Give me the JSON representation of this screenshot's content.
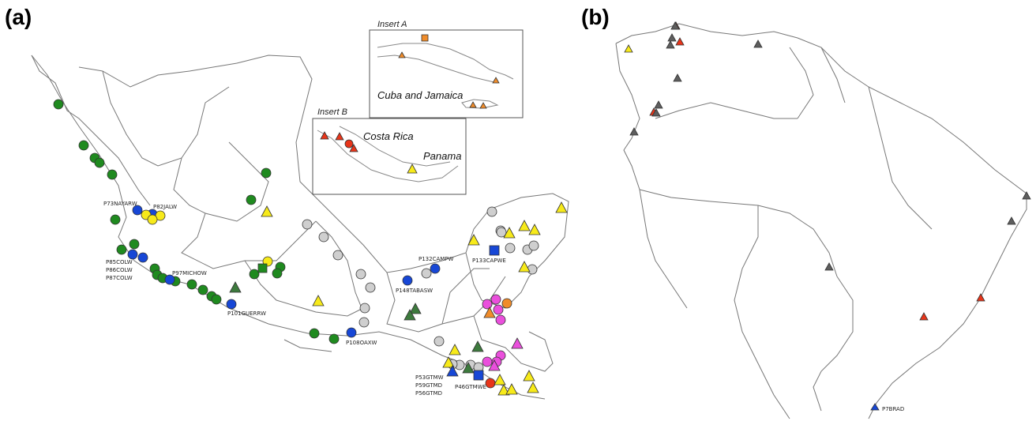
{
  "panels": {
    "a": "(a)",
    "b": "(b)"
  },
  "inserts": {
    "a": {
      "title": "Insert A",
      "name": "Cuba and Jamaica"
    },
    "b": {
      "title": "Insert B",
      "name1": "Costa Rica",
      "name2": "Panama"
    }
  },
  "point_labels": {
    "p73": "P73NAYARW",
    "p82": "P82JALW",
    "p85": "P85COLW",
    "p86": "P86COLW",
    "p87": "P87COLW",
    "p97": "P97MICHOW",
    "p101": "P101GUERRW",
    "p108": "P108OAXW",
    "p132": "P132CAMPW",
    "p133": "P133CAPWE",
    "p148": "P148TABASW",
    "p53": "P53GTMW",
    "p59": "P59GTMD",
    "p56": "P56GTMD",
    "p46": "P46GTMWE",
    "p7": "P7BRAD"
  },
  "colors": {
    "green": "#1f8a1f",
    "blue": "#1747d6",
    "yellow": "#f7ea1a",
    "gray": "#cfcfcf",
    "magenta": "#ea4fdc",
    "orange": "#f08c2a",
    "red": "#e8351a",
    "darkgreen": "#3d7a3d",
    "darkgray": "#5e5e5e"
  }
}
